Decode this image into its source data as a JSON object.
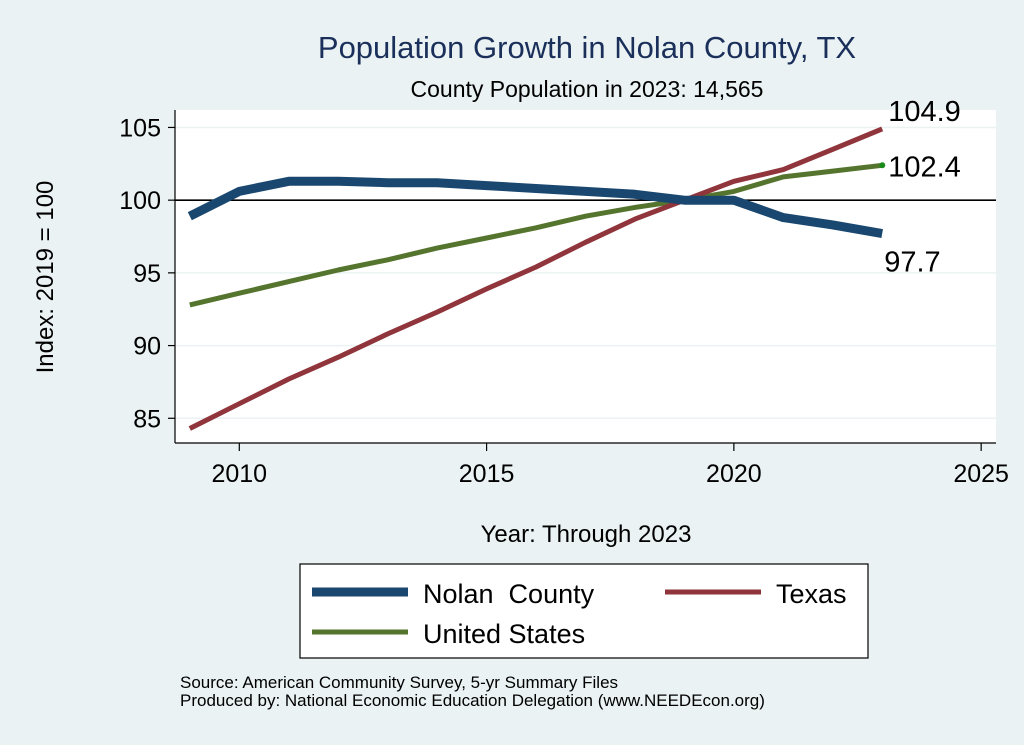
{
  "chart_data": {
    "type": "line",
    "title": "Population Growth in Nolan County, TX",
    "subtitle": "County Population in 2023: 14,565",
    "xlabel": "Year: Through 2023",
    "ylabel": "Index: 2019 = 100",
    "xlim": [
      2008.7,
      2025.3
    ],
    "ylim": [
      83.3,
      106.2
    ],
    "xticks": [
      2010,
      2015,
      2020,
      2025
    ],
    "yticks": [
      85,
      90,
      95,
      100,
      105
    ],
    "reference_line": 100,
    "grid": true,
    "x": [
      2009,
      2010,
      2011,
      2012,
      2013,
      2014,
      2015,
      2016,
      2017,
      2018,
      2019,
      2020,
      2021,
      2022,
      2023
    ],
    "series": [
      {
        "name": "Nolan  County",
        "color": "#1a476f",
        "values": [
          98.9,
          100.6,
          101.3,
          101.3,
          101.2,
          101.2,
          101.0,
          100.8,
          100.6,
          100.4,
          100.0,
          100.0,
          98.8,
          98.3,
          97.7
        ],
        "end_label": "97.7"
      },
      {
        "name": "Texas",
        "color": "#90353b",
        "values": [
          84.3,
          86.0,
          87.7,
          89.2,
          90.8,
          92.3,
          93.9,
          95.4,
          97.1,
          98.7,
          100.0,
          101.3,
          102.1,
          103.5,
          104.9
        ],
        "end_label": "104.9"
      },
      {
        "name": "United States",
        "color": "#55752f",
        "values": [
          92.8,
          93.6,
          94.4,
          95.2,
          95.9,
          96.7,
          97.4,
          98.1,
          98.9,
          99.5,
          100.0,
          100.6,
          101.6,
          102.0,
          102.4
        ],
        "end_label": "102.4"
      }
    ],
    "legend": {
      "placement": "bottom",
      "entries": [
        "Nolan  County",
        "Texas",
        "United States"
      ]
    },
    "notes": [
      "Source: American Community Survey, 5-yr Summary Files",
      "Produced by: National Economic Education Delegation (www.NEEDEcon.org)"
    ]
  },
  "colors": {
    "background": "#eaf2f3",
    "plot_background": "#ffffff",
    "gridline": "#eaf2f3",
    "title": "#1a2f5a"
  }
}
